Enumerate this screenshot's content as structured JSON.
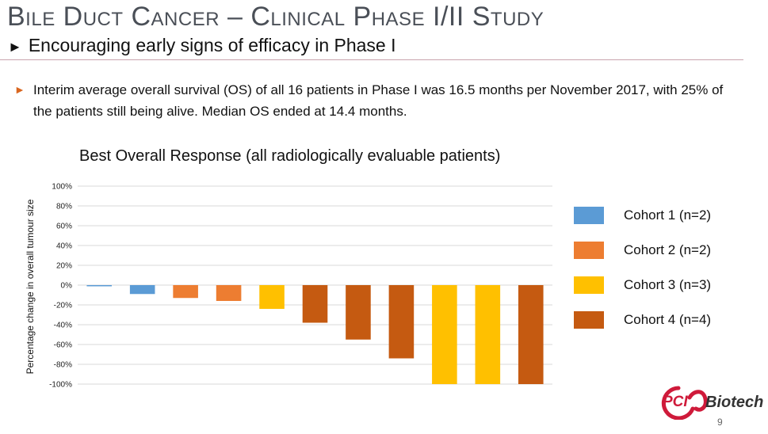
{
  "header": {
    "title": "Bile Duct Cancer – Clinical Phase I/II Study",
    "subtitle": "Encouraging early signs of efficacy in Phase I",
    "subtitle_marker": "►"
  },
  "bullet": {
    "marker": "►",
    "text": "Interim average overall survival (OS) of all 16 patients in Phase I was 16.5 months per November 2017, with 25% of the patients still being alive. Median OS ended at 14.4 months."
  },
  "chart_data": {
    "type": "bar",
    "title": "Best Overall Response (all radiologically evaluable patients)",
    "xlabel": "",
    "ylabel": "Percentage change in overall tumour size",
    "ylim": [
      -100,
      100
    ],
    "yticks": [
      -100,
      -80,
      -60,
      -40,
      -20,
      0,
      20,
      40,
      60,
      80,
      100
    ],
    "yticks_labels": [
      "-100%",
      "-80%",
      "-60%",
      "-40%",
      "-20%",
      "0%",
      "20%",
      "40%",
      "60%",
      "80%",
      "100%"
    ],
    "grid": true,
    "legend_position": "right",
    "cohorts": [
      {
        "name": "Cohort 1 (n=2)",
        "color": "#5b9bd5"
      },
      {
        "name": "Cohort 2 (n=2)",
        "color": "#ed7d31"
      },
      {
        "name": "Cohort 3 (n=3)",
        "color": "#ffc000"
      },
      {
        "name": "Cohort 4 (n=4)",
        "color": "#c55a11"
      }
    ],
    "bars": [
      {
        "value": -1,
        "cohort": 0
      },
      {
        "value": -9,
        "cohort": 0
      },
      {
        "value": -13,
        "cohort": 1
      },
      {
        "value": -16,
        "cohort": 1
      },
      {
        "value": -24,
        "cohort": 2
      },
      {
        "value": -38,
        "cohort": 3
      },
      {
        "value": -55,
        "cohort": 3
      },
      {
        "value": -74,
        "cohort": 3
      },
      {
        "value": -100,
        "cohort": 2
      },
      {
        "value": -100,
        "cohort": 2
      },
      {
        "value": -100,
        "cohort": 3
      }
    ]
  },
  "logo": {
    "pci": "PCI",
    "biotech": "Biotech"
  },
  "footer": {
    "page_number": "9"
  }
}
